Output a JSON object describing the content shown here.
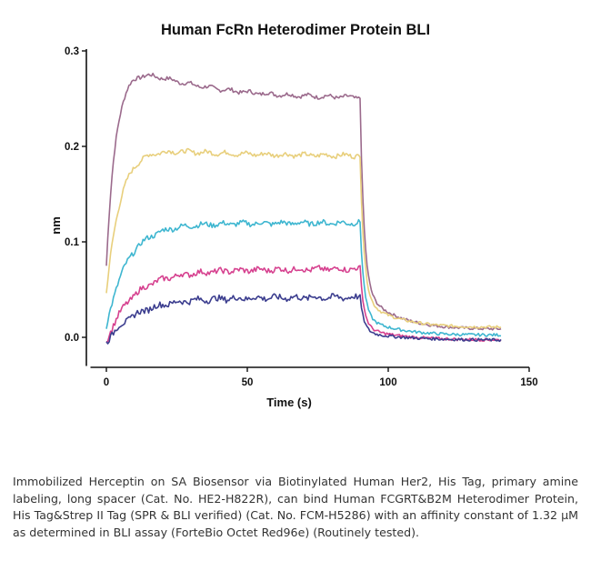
{
  "chart_data": {
    "type": "line",
    "title": "Human FcRn Heterodimer Protein BLI",
    "xlabel": "Time (s)",
    "ylabel": "nm",
    "xlim": [
      -5,
      150
    ],
    "ylim": [
      -0.03,
      0.3
    ],
    "x_ticks": [
      0,
      50,
      100,
      150
    ],
    "x_tick_labels": [
      "0",
      "50",
      "100",
      "150"
    ],
    "y_ticks": [
      0.0,
      0.1,
      0.2,
      0.3
    ],
    "y_tick_labels": [
      "0.0",
      "0.1",
      "0.2",
      "0.3"
    ],
    "grid": false,
    "legend": "none",
    "association_end": 90,
    "end_time": 140,
    "series": [
      {
        "color": "#9B6A8C",
        "start": 0.075,
        "plateau": 0.25,
        "rise": 0.225,
        "kon": 0.28,
        "base": 0.006,
        "dip": 0.16,
        "end": 0.008
      },
      {
        "color": "#E8CF7C",
        "start": 0.045,
        "plateau": 0.19,
        "rise": 0.16,
        "kon": 0.2,
        "base": 0.007,
        "dip": 0.15,
        "end": 0.01
      },
      {
        "color": "#3EB6D0",
        "start": 0.01,
        "plateau": 0.12,
        "rise": 0.105,
        "kon": 0.14,
        "base": 0.0,
        "dip": 0.15,
        "end": 0.002
      },
      {
        "color": "#D6418F",
        "start": -0.005,
        "plateau": 0.072,
        "rise": 0.065,
        "kon": 0.12,
        "base": -0.003,
        "dip": 0.15,
        "end": -0.003
      },
      {
        "color": "#3C3E8F",
        "start": -0.005,
        "plateau": 0.042,
        "rise": 0.042,
        "kon": 0.1,
        "base": -0.002,
        "dip": 0.16,
        "end": -0.003
      }
    ]
  },
  "caption": "Immobilized Herceptin on SA Biosensor via Biotinylated Human Her2, His Tag, primary amine labeling, long spacer (Cat. No. HE2-H822R), can bind Human FCGRT&B2M Heterodimer Protein, His Tag&Strep II Tag (SPR & BLI verified) (Cat. No. FCM-H5286) with an affinity constant of 1.32 μM as determined in BLI assay (ForteBio Octet Red96e) (Routinely tested)."
}
